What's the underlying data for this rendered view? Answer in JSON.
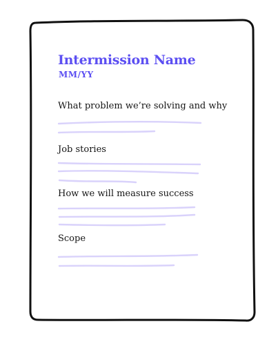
{
  "document": {
    "title": "Intermission Name",
    "date": "MM/YY",
    "sections": [
      {
        "heading": "What problem we’re solving and why"
      },
      {
        "heading": "Job stories"
      },
      {
        "heading": "How we will measure success"
      },
      {
        "heading": "Scope"
      }
    ]
  },
  "colors": {
    "accent": "#5c4ff2",
    "placeholder_lines": "#d9d2fb",
    "frame": "#111111",
    "text": "#141414"
  }
}
